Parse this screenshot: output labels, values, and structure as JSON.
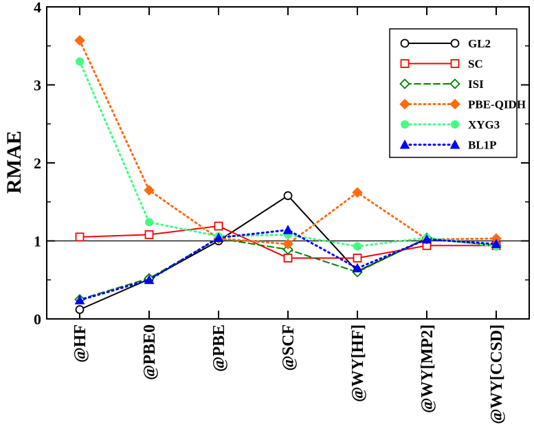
{
  "chart_data": {
    "type": "line",
    "title": "",
    "xlabel": "",
    "ylabel": "RMAE",
    "categories": [
      "@HF",
      "@PBE0",
      "@PBE",
      "@SCF",
      "@WY[HF]",
      "@WY[MP2]",
      "@WY[CCSD]"
    ],
    "ylim": [
      0,
      4
    ],
    "yticks": [
      0,
      1,
      2,
      3,
      4
    ],
    "reference_line": 1,
    "grid": false,
    "legend_position": "top-right",
    "series": [
      {
        "name": "GL2",
        "color": "#000000",
        "dash": "solid",
        "marker": "circle-open",
        "values": [
          0.12,
          0.51,
          1.0,
          1.58,
          0.61,
          1.03,
          0.94
        ]
      },
      {
        "name": "SC",
        "color": "#ff0000",
        "dash": "solid",
        "marker": "square-open",
        "values": [
          1.05,
          1.08,
          1.19,
          0.78,
          0.78,
          0.94,
          0.94
        ]
      },
      {
        "name": "ISI",
        "color": "#008000",
        "dash": "dashed",
        "marker": "diamond-open",
        "values": [
          0.25,
          0.52,
          1.03,
          0.89,
          0.6,
          1.04,
          0.94
        ]
      },
      {
        "name": "PBE-QIDH",
        "color": "#ff6a10",
        "dash": "dotted",
        "marker": "diamond-filled",
        "values": [
          3.57,
          1.65,
          1.03,
          0.96,
          1.62,
          1.02,
          1.03
        ]
      },
      {
        "name": "XYG3",
        "color": "#40ff80",
        "dash": "dotted",
        "marker": "circle-filled",
        "values": [
          3.3,
          1.24,
          1.06,
          1.08,
          0.93,
          1.04,
          0.93
        ]
      },
      {
        "name": "BL1P",
        "color": "#0000ff",
        "dash": "dotted",
        "marker": "triangle-filled",
        "values": [
          0.24,
          0.5,
          1.04,
          1.14,
          0.65,
          1.02,
          0.96
        ]
      }
    ]
  }
}
